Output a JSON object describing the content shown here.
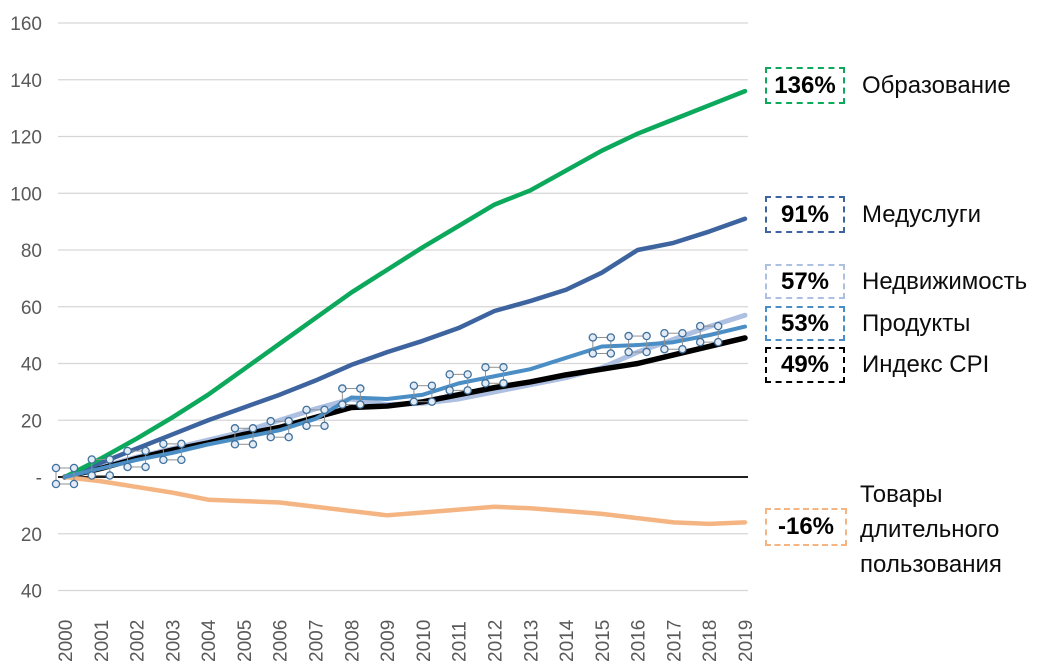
{
  "chart_data": {
    "type": "line",
    "title": "",
    "grid": true,
    "legend_position": "right",
    "x_label_rotation": -90,
    "ylim": [
      -40,
      160
    ],
    "years": [
      2000,
      2001,
      2002,
      2003,
      2004,
      2005,
      2006,
      2007,
      2008,
      2009,
      2010,
      2011,
      2012,
      2013,
      2014,
      2015,
      2016,
      2017,
      2018,
      2019
    ],
    "y_ticks": [
      {
        "value": 160,
        "label": "160"
      },
      {
        "value": 140,
        "label": "140"
      },
      {
        "value": 120,
        "label": "120"
      },
      {
        "value": 100,
        "label": "100"
      },
      {
        "value": 80,
        "label": "80"
      },
      {
        "value": 60,
        "label": "60"
      },
      {
        "value": 40,
        "label": "40"
      },
      {
        "value": 20,
        "label": "20"
      },
      {
        "value": 0,
        "label": "-"
      },
      {
        "value": -20,
        "label": "20"
      },
      {
        "value": -40,
        "label": "40"
      }
    ],
    "series": [
      {
        "key": "education",
        "label": "Образование",
        "callout": "136%",
        "final_value": 136,
        "color": "#0CA85B",
        "values": [
          0,
          6.5,
          13.5,
          21,
          29,
          38,
          47,
          56,
          65,
          73,
          81,
          88.5,
          96,
          101,
          108,
          115,
          121,
          126,
          131,
          136
        ]
      },
      {
        "key": "medical",
        "label": "Медуслуги",
        "callout": "91%",
        "final_value": 91,
        "color": "#3E64A0",
        "values": [
          0,
          5,
          10,
          15,
          20,
          24.5,
          29,
          34,
          39.5,
          44,
          48,
          52.5,
          58.5,
          62,
          66,
          72,
          80,
          82.5,
          86.5,
          91
        ]
      },
      {
        "key": "realestate",
        "label": "Недвижимость",
        "callout": "57%",
        "final_value": 57,
        "color": "#AEC0E2",
        "values": [
          0,
          3.5,
          7,
          10,
          13,
          16,
          20,
          24,
          27.5,
          25.5,
          26,
          27.5,
          30,
          32.5,
          35,
          38.5,
          44,
          48.5,
          53,
          57
        ]
      },
      {
        "key": "products",
        "label": "Продукты",
        "callout": "53%",
        "final_value": 53,
        "color": "#4A8EC5",
        "selected": true,
        "values": [
          0,
          3,
          6,
          8.5,
          11.5,
          14,
          16.5,
          20.5,
          28,
          27.5,
          29,
          33,
          35.5,
          38,
          42,
          46,
          46.5,
          47.5,
          50,
          53
        ]
      },
      {
        "key": "cpi",
        "label": "Индекс CPI",
        "callout": "49%",
        "final_value": 49,
        "color": "#000000",
        "values": [
          0,
          3,
          6.5,
          9.5,
          12,
          15,
          17.5,
          21,
          24.5,
          25,
          26.5,
          29,
          31.5,
          33.5,
          36,
          38,
          40,
          43,
          46,
          49
        ]
      },
      {
        "key": "durables",
        "label": "Товары длительного пользования",
        "callout": "-16%",
        "final_value": -16,
        "color": "#F5B583",
        "values": [
          0,
          -1.5,
          -3.5,
          -5.5,
          -8,
          -8.5,
          -9,
          -10.5,
          -12,
          -13.5,
          -12.5,
          -11.5,
          -10.5,
          -11,
          -12,
          -13,
          -14.5,
          -16,
          -16.5,
          -16
        ]
      }
    ],
    "selection_handle_years": [
      2000,
      2001,
      2002,
      2003,
      2005,
      2006,
      2007,
      2008,
      2010,
      2011,
      2012,
      2015,
      2016,
      2017,
      2018
    ],
    "colors": {
      "gridline": "#D6D6D6",
      "axis_line": "#000000",
      "axis_text": "#595959",
      "handle_fill": "#E3ECF6",
      "handle_stroke": "#41719C",
      "handle_box_stroke": "#909090"
    }
  }
}
